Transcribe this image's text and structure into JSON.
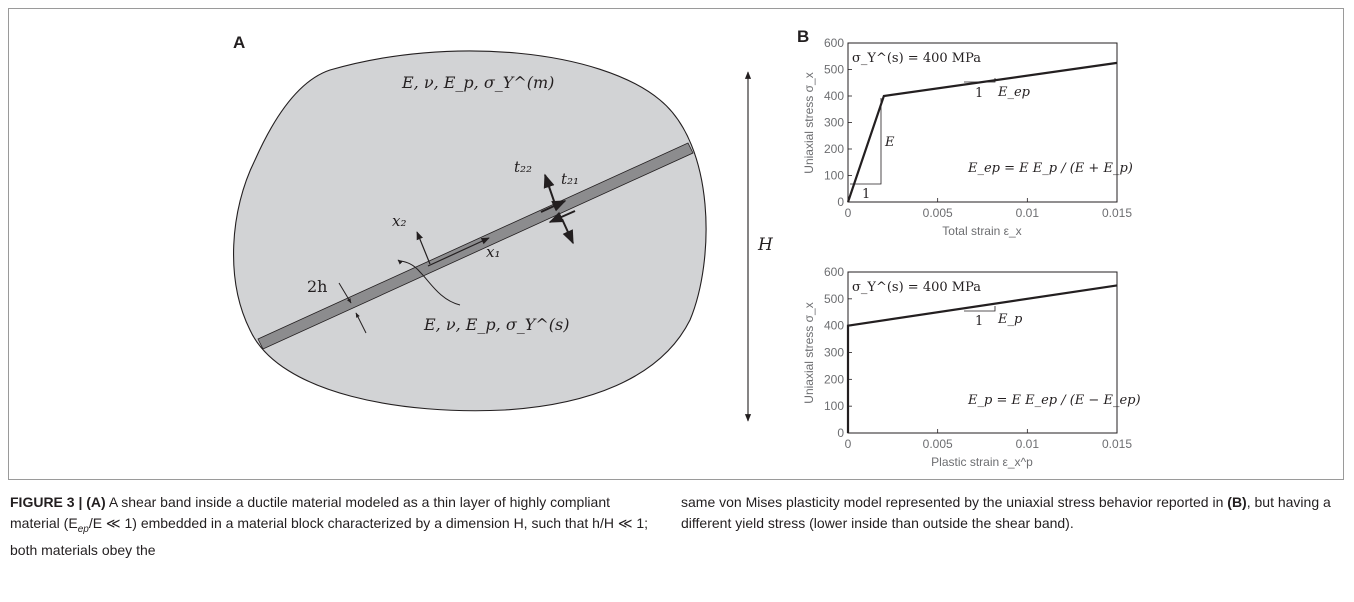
{
  "panel_a": {
    "letter": "A",
    "matrix_label": "E, ν, E_p, σ_Y^(m)",
    "band_label": "E, ν, E_p, σ_Y^(s)",
    "thickness_label": "2h",
    "height_label": "H",
    "x1_label": "x₁",
    "x2_label": "x₂",
    "t21_label": "t₂₁",
    "t22_label": "t₂₂"
  },
  "panel_b": {
    "letter": "B",
    "top_annotation": "σ_Y^(s) = 400 MPa",
    "top_formula": "E_ep = E E_p / (E + E_p)",
    "top_slope_label": "E_ep",
    "elastic_label": "E",
    "unit_label": "1",
    "bottom_annotation": "σ_Y^(s) = 400 MPa",
    "bottom_formula": "E_p = E E_ep / (E − E_ep)",
    "bottom_slope_label": "E_p"
  },
  "chart_data": [
    {
      "type": "line",
      "xlabel": "Total strain ε_x",
      "ylabel": "Uniaxial stress σ_x",
      "xlim": [
        0,
        0.015
      ],
      "ylim": [
        0,
        600
      ],
      "xticks": [
        "0",
        "0.005",
        "0.01",
        "0.015"
      ],
      "yticks": [
        "0",
        "100",
        "200",
        "300",
        "400",
        "500",
        "600"
      ],
      "series": [
        {
          "x": [
            0,
            0.002,
            0.015
          ],
          "y": [
            0,
            400,
            525
          ]
        }
      ]
    },
    {
      "type": "line",
      "xlabel": "Plastic strain ε_x^p",
      "ylabel": "Uniaxial stress σ_x",
      "xlim": [
        0,
        0.015
      ],
      "ylim": [
        0,
        600
      ],
      "xticks": [
        "0",
        "0.005",
        "0.01",
        "0.015"
      ],
      "yticks": [
        "0",
        "100",
        "200",
        "300",
        "400",
        "500",
        "600"
      ],
      "series": [
        {
          "x": [
            0,
            0,
            0.015
          ],
          "y": [
            0,
            400,
            550
          ]
        }
      ]
    }
  ],
  "caption": {
    "label": "FIGURE 3 | (A)",
    "part1": " A shear band inside a ductile material modeled as a thin layer of highly compliant material (E",
    "sub_ep": "ep",
    "part2": "/E ≪ 1) embedded in a material block characterized by a dimension H, such that h/H ≪ 1; both materials obey the",
    "part3": "same von Mises plasticity model represented by the uniaxial stress behavior reported in ",
    "ref_b": "(B)",
    "part4": ", but having a different yield stress (lower inside than outside the shear band)."
  }
}
